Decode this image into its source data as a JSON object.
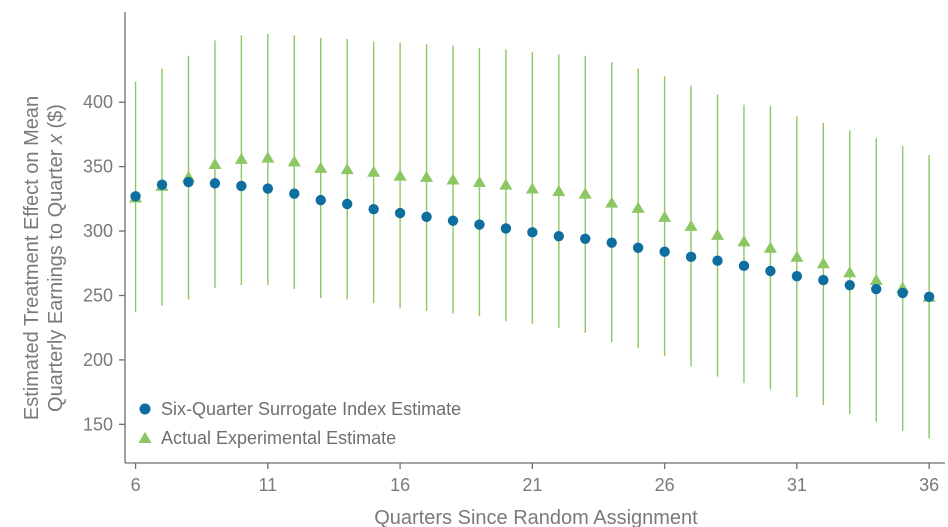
{
  "chart_data": {
    "type": "scatter",
    "title": "",
    "xlabel": "Quarters Since Random Assignment",
    "ylabel_line1": "Estimated Treatment Effect on Mean",
    "ylabel_line2_prefix": "Quarterly Earnings to Quarter ",
    "ylabel_line2_var": "x",
    "ylabel_line2_suffix": " ($)",
    "xlim": [
      5.6,
      36.6
    ],
    "ylim": [
      120,
      470
    ],
    "xticks": [
      6,
      11,
      16,
      21,
      26,
      31,
      36
    ],
    "yticks": [
      150,
      200,
      250,
      300,
      350,
      400
    ],
    "legend_position": "bottom-left",
    "grid": false,
    "colors": {
      "surrogate": "#0f6ea0",
      "actual": "#8cc764",
      "axis": "#6e6e6e",
      "text": "#7a7a7a"
    },
    "series": [
      {
        "name": "Six-Quarter Surrogate Index Estimate",
        "marker": "circle",
        "x": [
          6,
          7,
          8,
          9,
          10,
          11,
          12,
          13,
          14,
          15,
          16,
          17,
          18,
          19,
          20,
          21,
          22,
          23,
          24,
          25,
          26,
          27,
          28,
          29,
          30,
          31,
          32,
          33,
          34,
          35,
          36
        ],
        "values": [
          327,
          336,
          338,
          337,
          335,
          333,
          329,
          324,
          321,
          317,
          314,
          311,
          308,
          305,
          302,
          299,
          296,
          294,
          291,
          287,
          284,
          280,
          277,
          273,
          269,
          265,
          262,
          258,
          255,
          252,
          249
        ]
      },
      {
        "name": "Actual Experimental Estimate",
        "marker": "triangle",
        "x": [
          6,
          7,
          8,
          9,
          10,
          11,
          12,
          13,
          14,
          15,
          16,
          17,
          18,
          19,
          20,
          21,
          22,
          23,
          24,
          25,
          26,
          27,
          28,
          29,
          30,
          31,
          32,
          33,
          34,
          35,
          36
        ],
        "values": [
          326,
          335,
          342,
          352,
          356,
          357,
          354,
          349,
          348,
          346,
          343,
          342,
          340,
          338,
          336,
          333,
          331,
          329,
          322,
          318,
          311,
          304,
          297,
          292,
          287,
          280,
          275,
          268,
          262,
          256,
          249
        ],
        "error_low": [
          237,
          242,
          247,
          256,
          258,
          258,
          255,
          248,
          247,
          244,
          240,
          238,
          236,
          234,
          230,
          228,
          225,
          221,
          214,
          209,
          203,
          195,
          187,
          182,
          177,
          171,
          165,
          158,
          152,
          145,
          139
        ],
        "error_high": [
          416,
          426,
          436,
          448,
          452,
          453,
          452,
          450,
          449,
          447,
          446,
          445,
          444,
          442,
          441,
          439,
          437,
          436,
          431,
          426,
          420,
          413,
          406,
          398,
          397,
          389,
          384,
          378,
          372,
          366,
          359
        ]
      }
    ]
  }
}
